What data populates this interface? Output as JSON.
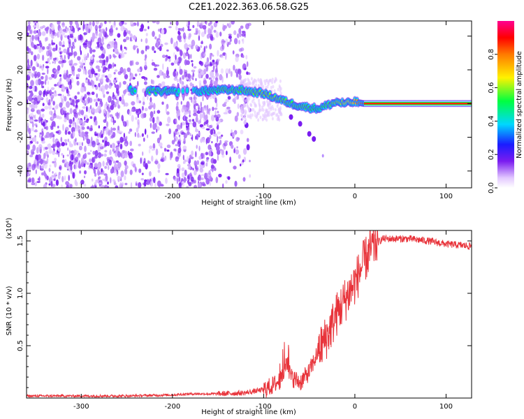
{
  "figure": {
    "title": "C2E1.2022.363.06.58.G25"
  },
  "chart_data": [
    {
      "type": "heatmap",
      "xlabel": "Height of straight line (km)",
      "ylabel": "Frequency (Hz)",
      "xlim": [
        -360,
        128
      ],
      "ylim": [
        -50,
        49
      ],
      "x_ticks": [
        -300,
        -200,
        -100,
        0,
        100
      ],
      "y_ticks": [
        -40,
        -20,
        0,
        20,
        40
      ],
      "colorbar": {
        "label": "Normalized spectral amplitude",
        "range": [
          0,
          1
        ],
        "ticks": [
          0.0,
          0.2,
          0.4,
          0.6,
          0.8
        ]
      },
      "signal_track": [
        {
          "x": -247,
          "y": 8,
          "amp": 0.45
        },
        {
          "x": -225,
          "y": 7.5,
          "amp": 0.55
        },
        {
          "x": -205,
          "y": 7,
          "amp": 0.5
        },
        {
          "x": -185,
          "y": 7,
          "amp": 0.4
        },
        {
          "x": -165,
          "y": 7.5,
          "amp": 0.45
        },
        {
          "x": -145,
          "y": 8,
          "amp": 0.55
        },
        {
          "x": -125,
          "y": 8,
          "amp": 0.55
        },
        {
          "x": -100,
          "y": 6,
          "amp": 0.6
        },
        {
          "x": -85,
          "y": 3,
          "amp": 0.6
        },
        {
          "x": -70,
          "y": 0,
          "amp": 0.55
        },
        {
          "x": -55,
          "y": -2,
          "amp": 0.55
        },
        {
          "x": -40,
          "y": -3,
          "amp": 0.5
        },
        {
          "x": -30,
          "y": -1,
          "amp": 0.55
        },
        {
          "x": -20,
          "y": 1,
          "amp": 0.6
        },
        {
          "x": -10,
          "y": 0,
          "amp": 0.65
        },
        {
          "x": 0,
          "y": 1,
          "amp": 0.7
        },
        {
          "x": 10,
          "y": 0,
          "amp": 0.85
        },
        {
          "x": 128,
          "y": 0,
          "amp": 0.9
        }
      ],
      "secondary_track": [
        {
          "x": -70,
          "y": -8
        },
        {
          "x": -60,
          "y": -12
        },
        {
          "x": -50,
          "y": -18
        },
        {
          "x": -45,
          "y": -21
        }
      ]
    },
    {
      "type": "line",
      "xlabel": "Height of straight line (km)",
      "ylabel": "SNR (10 * v/v)",
      "y_scale_label": "(x10⁴)",
      "xlim": [
        -360,
        128
      ],
      "ylim": [
        0,
        1.6
      ],
      "x_ticks": [
        -300,
        -200,
        -100,
        0,
        100
      ],
      "y_ticks": [
        0.5,
        1.0,
        1.5
      ],
      "series": [
        {
          "color": "#e8333a",
          "x": [
            -360,
            -300,
            -250,
            -200,
            -180,
            -150,
            -120,
            -100,
            -90,
            -80,
            -75,
            -70,
            -60,
            -50,
            -40,
            -30,
            -20,
            -10,
            0,
            10,
            20,
            30,
            40,
            60,
            80,
            100,
            128
          ],
          "y": [
            0.02,
            0.02,
            0.02,
            0.03,
            0.04,
            0.04,
            0.05,
            0.08,
            0.12,
            0.18,
            0.35,
            0.2,
            0.15,
            0.25,
            0.45,
            0.6,
            0.8,
            0.95,
            1.1,
            1.3,
            1.45,
            1.52,
            1.52,
            1.52,
            1.5,
            1.47,
            1.45
          ]
        }
      ]
    }
  ]
}
